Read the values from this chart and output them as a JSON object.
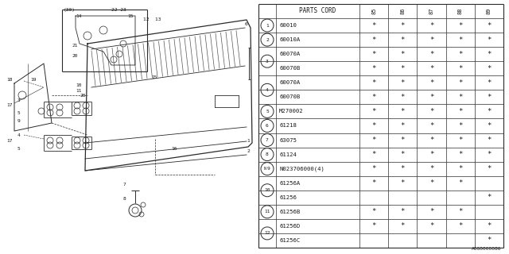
{
  "footer": "A6G0000086",
  "table": {
    "header_label": "PARTS CORD",
    "columns": [
      "85",
      "86",
      "87",
      "88",
      "89"
    ],
    "rows": [
      {
        "part": "60010",
        "marks": [
          1,
          1,
          1,
          1,
          1
        ]
      },
      {
        "part": "60010A",
        "marks": [
          1,
          1,
          1,
          1,
          1
        ]
      },
      {
        "part": "60070A",
        "marks": [
          1,
          1,
          1,
          1,
          1
        ]
      },
      {
        "part": "60070B",
        "marks": [
          1,
          1,
          1,
          1,
          1
        ]
      },
      {
        "part": "60070A",
        "marks": [
          1,
          1,
          1,
          1,
          1
        ]
      },
      {
        "part": "60070B",
        "marks": [
          1,
          1,
          1,
          1,
          1
        ]
      },
      {
        "part": "M270002",
        "marks": [
          1,
          1,
          1,
          1,
          1
        ]
      },
      {
        "part": "61218",
        "marks": [
          1,
          1,
          1,
          1,
          1
        ]
      },
      {
        "part": "63075",
        "marks": [
          1,
          1,
          1,
          1,
          1
        ]
      },
      {
        "part": "61124",
        "marks": [
          1,
          1,
          1,
          1,
          1
        ]
      },
      {
        "part": "N023706000(4)",
        "marks": [
          1,
          1,
          1,
          1,
          1
        ]
      },
      {
        "part": "61256A",
        "marks": [
          1,
          1,
          1,
          1,
          0
        ]
      },
      {
        "part": "61256",
        "marks": [
          0,
          0,
          0,
          0,
          1
        ]
      },
      {
        "part": "61256B",
        "marks": [
          1,
          1,
          1,
          1,
          0
        ]
      },
      {
        "part": "61256D",
        "marks": [
          1,
          1,
          1,
          1,
          1
        ]
      },
      {
        "part": "61256C",
        "marks": [
          0,
          0,
          0,
          0,
          1
        ]
      }
    ],
    "groups": [
      {
        "num": "1",
        "rows": [
          0
        ],
        "special": false
      },
      {
        "num": "2",
        "rows": [
          1
        ],
        "special": false
      },
      {
        "num": "3",
        "rows": [
          2,
          3
        ],
        "special": false
      },
      {
        "num": "4",
        "rows": [
          4,
          5
        ],
        "special": false
      },
      {
        "num": "5",
        "rows": [
          6
        ],
        "special": false
      },
      {
        "num": "6",
        "rows": [
          7
        ],
        "special": false
      },
      {
        "num": "7",
        "rows": [
          8
        ],
        "special": false
      },
      {
        "num": "8",
        "rows": [
          9
        ],
        "special": false
      },
      {
        "num": "9",
        "rows": [
          10
        ],
        "special": true
      },
      {
        "num": "10",
        "rows": [
          11,
          12
        ],
        "special": false
      },
      {
        "num": "11",
        "rows": [
          13
        ],
        "special": false
      },
      {
        "num": "12",
        "rows": [
          14,
          15
        ],
        "special": false
      }
    ]
  },
  "bg_color": "#ffffff",
  "line_color": "#2a2a2a",
  "text_color": "#1a1a1a"
}
